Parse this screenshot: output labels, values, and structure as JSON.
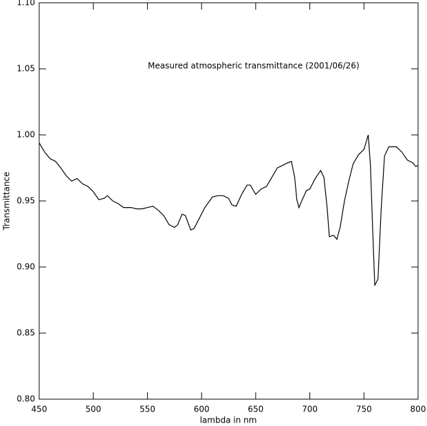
{
  "chart_data": {
    "type": "line",
    "annotation": "Measured atmospheric transmittance (2001/06/26)",
    "xlabel": "lambda in nm",
    "ylabel": "Transmittance",
    "xlim": [
      450,
      800
    ],
    "xticks": [
      450,
      500,
      550,
      600,
      650,
      700,
      750,
      800
    ],
    "ylim": [
      0.8,
      1.1
    ],
    "yticks": [
      {
        "value": 0.8,
        "label": "0.80"
      },
      0.85,
      {
        "value": 0.9,
        "label": "0.90"
      },
      0.95,
      {
        "value": 1.0,
        "label": "1.00"
      },
      1.05,
      {
        "value": 1.1,
        "label": "1.10"
      }
    ],
    "color": "#000000",
    "x": [
      450,
      455,
      460,
      465,
      470,
      475,
      480,
      485,
      490,
      495,
      500,
      505,
      510,
      513,
      518,
      523,
      528,
      535,
      540,
      545,
      550,
      555,
      560,
      565,
      570,
      575,
      578,
      582,
      585,
      590,
      593,
      598,
      603,
      610,
      615,
      620,
      625,
      628,
      632,
      637,
      642,
      645,
      650,
      655,
      660,
      665,
      670,
      675,
      680,
      683,
      686,
      688,
      690,
      693,
      697,
      700,
      705,
      710,
      713,
      716,
      718,
      722,
      725,
      728,
      732,
      736,
      740,
      745,
      750,
      754,
      756,
      758,
      760,
      763,
      766,
      769,
      773,
      780,
      785,
      790,
      795,
      798,
      800
    ],
    "values": [
      0.994,
      0.987,
      0.982,
      0.98,
      0.975,
      0.969,
      0.965,
      0.967,
      0.963,
      0.961,
      0.957,
      0.951,
      0.952,
      0.954,
      0.95,
      0.948,
      0.945,
      0.945,
      0.944,
      0.944,
      0.945,
      0.946,
      0.943,
      0.939,
      0.932,
      0.93,
      0.932,
      0.94,
      0.939,
      0.928,
      0.929,
      0.937,
      0.945,
      0.953,
      0.954,
      0.954,
      0.952,
      0.947,
      0.946,
      0.955,
      0.962,
      0.962,
      0.955,
      0.959,
      0.961,
      0.968,
      0.975,
      0.977,
      0.979,
      0.98,
      0.968,
      0.951,
      0.945,
      0.951,
      0.958,
      0.959,
      0.967,
      0.973,
      0.968,
      0.945,
      0.923,
      0.924,
      0.921,
      0.93,
      0.95,
      0.965,
      0.978,
      0.985,
      0.989,
      1.0,
      0.977,
      0.93,
      0.886,
      0.891,
      0.945,
      0.984,
      0.991,
      0.991,
      0.987,
      0.981,
      0.979,
      0.976,
      0.977
    ]
  }
}
